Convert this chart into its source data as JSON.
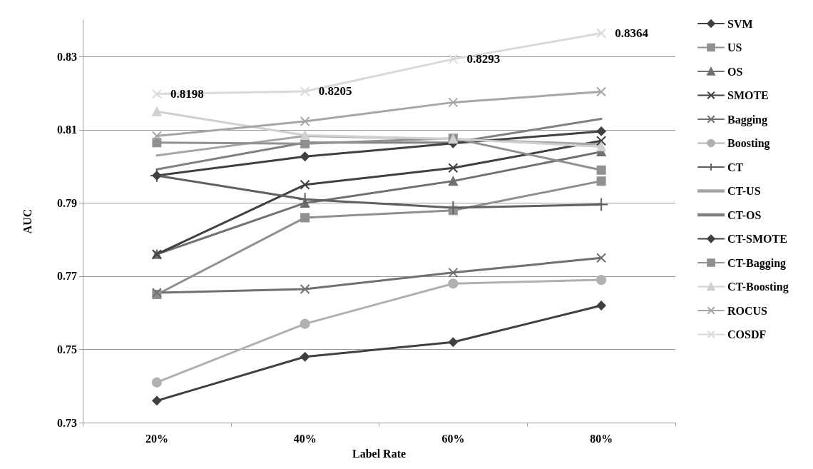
{
  "chart_data": {
    "type": "line",
    "xlabel": "Label Rate",
    "ylabel": "AUC",
    "categories": [
      "20%",
      "40%",
      "60%",
      "80%"
    ],
    "ylim": [
      0.73,
      0.84
    ],
    "yticks": [
      0.73,
      0.75,
      0.77,
      0.79,
      0.81,
      0.83
    ],
    "grid": "y",
    "legend": "right",
    "series": [
      {
        "name": "SVM",
        "color": "#404040",
        "marker": "diamond",
        "values": [
          0.736,
          0.748,
          0.752,
          0.762
        ]
      },
      {
        "name": "US",
        "color": "#909090",
        "marker": "square",
        "values": [
          0.765,
          0.786,
          0.788,
          0.796
        ]
      },
      {
        "name": "OS",
        "color": "#707070",
        "marker": "triangle",
        "values": [
          0.776,
          0.79,
          0.796,
          0.804
        ]
      },
      {
        "name": "SMOTE",
        "color": "#404040",
        "marker": "cross",
        "values": [
          0.776,
          0.795,
          0.7996,
          0.807
        ]
      },
      {
        "name": "Bagging",
        "color": "#707070",
        "marker": "cross",
        "values": [
          0.7655,
          0.7665,
          0.771,
          0.775
        ]
      },
      {
        "name": "Boosting",
        "color": "#b0b0b0",
        "marker": "circle",
        "values": [
          0.741,
          0.757,
          0.768,
          0.769
        ]
      },
      {
        "name": "CT",
        "color": "#606060",
        "marker": "plus",
        "values": [
          0.7975,
          0.791,
          0.7887,
          0.7896
        ]
      },
      {
        "name": "CT-US",
        "color": "#a6a6a6",
        "marker": "none",
        "values": [
          0.803,
          0.8083,
          0.8075,
          0.806
        ]
      },
      {
        "name": "CT-OS",
        "color": "#808080",
        "marker": "none",
        "values": [
          0.7992,
          0.8065,
          0.8065,
          0.813
        ]
      },
      {
        "name": "CT-SMOTE",
        "color": "#404040",
        "marker": "diamond",
        "values": [
          0.7975,
          0.8027,
          0.8063,
          0.8096
        ]
      },
      {
        "name": "CT-Bagging",
        "color": "#909090",
        "marker": "square",
        "values": [
          0.8065,
          0.8062,
          0.8077,
          0.799
        ]
      },
      {
        "name": "CT-Boosting",
        "color": "#d0d0d0",
        "marker": "triangle",
        "values": [
          0.815,
          0.8085,
          0.8075,
          0.8054
        ]
      },
      {
        "name": "ROCUS",
        "color": "#a6a6a6",
        "marker": "cross",
        "values": [
          0.8083,
          0.8123,
          0.8175,
          0.8204
        ]
      },
      {
        "name": "COSDF",
        "color": "#d9d9d9",
        "marker": "cross",
        "values": [
          0.8198,
          0.8205,
          0.8293,
          0.8364
        ],
        "value_labels": [
          "0.8198",
          "0.8205",
          "0.8293",
          "0.8364"
        ]
      }
    ]
  }
}
